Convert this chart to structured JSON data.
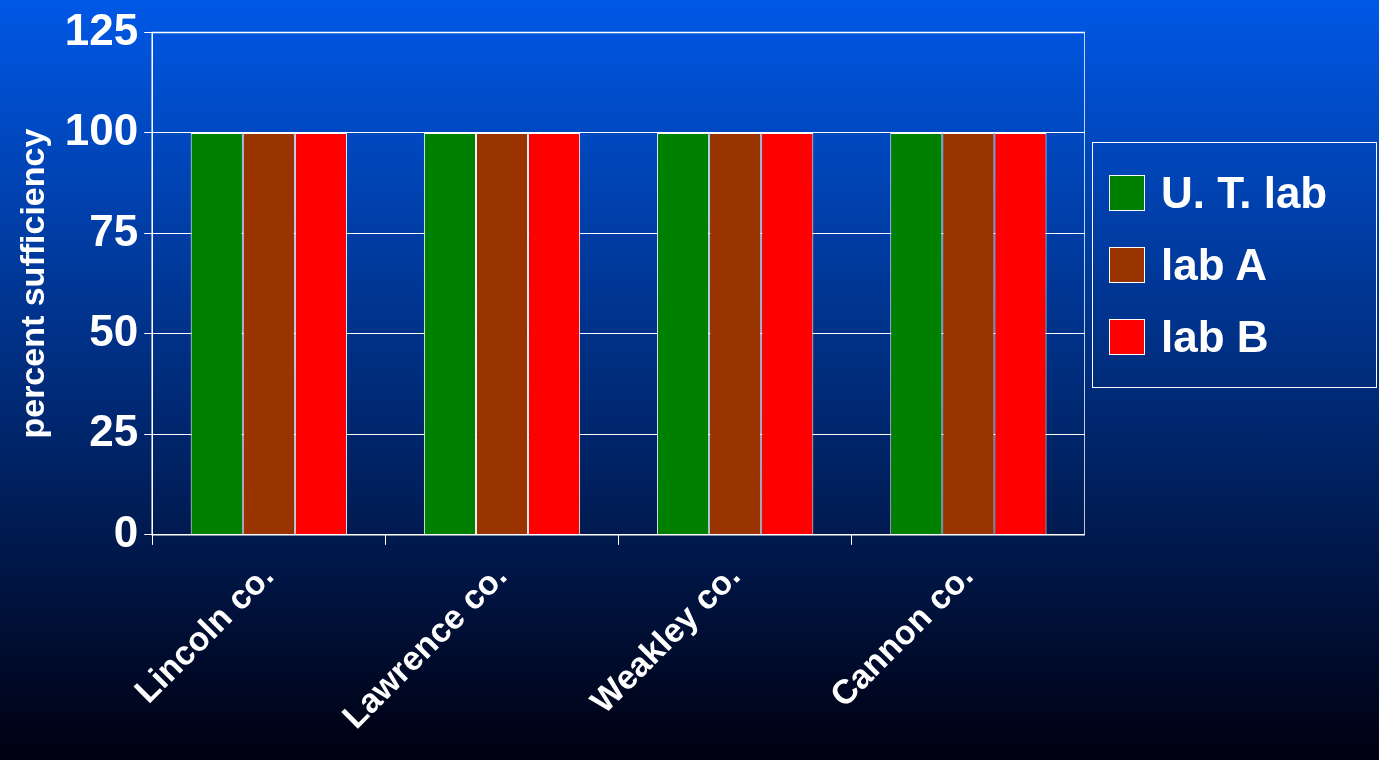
{
  "chart_data": {
    "type": "bar",
    "ylabel": "percent sufficiency",
    "categories": [
      "Lincoln co.",
      "Lawrence co.",
      "Weakley co.",
      "Cannon co."
    ],
    "series": [
      {
        "name": "U. T. lab",
        "color": "#008000",
        "values": [
          100,
          100,
          100,
          100
        ]
      },
      {
        "name": "lab A",
        "color": "#993300",
        "values": [
          100,
          100,
          100,
          100
        ]
      },
      {
        "name": "lab B",
        "color": "#ff0000",
        "values": [
          100,
          100,
          100,
          100
        ]
      }
    ],
    "ylim": [
      0,
      125
    ],
    "yticks": [
      0,
      25,
      50,
      75,
      100,
      125
    ],
    "grid": "y",
    "legend": "right"
  }
}
